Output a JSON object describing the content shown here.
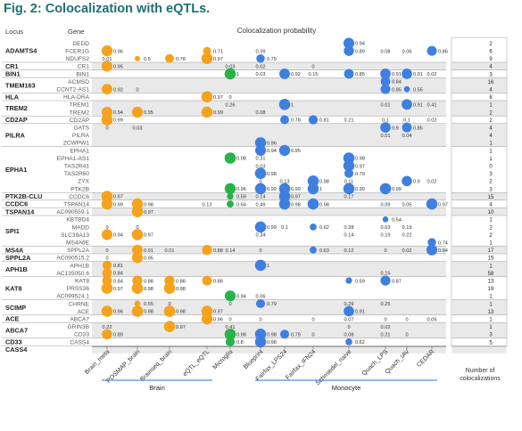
{
  "title": "Fig. 2: Colocalization with eQTLs.",
  "chart_data": {
    "type": "scatter",
    "title": "Colocalization probability",
    "header_locus": "Locus",
    "header_gene": "Gene",
    "columns": [
      "Brain_meta",
      "ROSMAP_brain",
      "Brainseq_brain",
      "eQTL_eQTL",
      "Microglia",
      "Blueprint",
      "Fairfax_LPS24",
      "Fairfax_IFN24",
      "Schmiedel_naive",
      "Quach_LPS",
      "Quach_IAV",
      "CEDAR"
    ],
    "count_label": "Number of colocalizations",
    "groups": [
      {
        "label": "Brain",
        "from": 0,
        "to": 3
      },
      {
        "label": "Monocyte",
        "from": 5,
        "to": 11
      }
    ],
    "colors": {
      "Brain": "#f5a21d",
      "Microglia": "#27b24a",
      "Monocyte": "#3f7fe0"
    },
    "loci": [
      {
        "name": "ADAMTS4",
        "from": 0,
        "to": 2
      },
      {
        "name": "CR1",
        "from": 3,
        "to": 3
      },
      {
        "name": "BIN1",
        "from": 4,
        "to": 4
      },
      {
        "name": "TMEM163",
        "from": 5,
        "to": 6
      },
      {
        "name": "HLA",
        "from": 7,
        "to": 7
      },
      {
        "name": "TREM2",
        "from": 8,
        "to": 9
      },
      {
        "name": "CD2AP",
        "from": 10,
        "to": 10
      },
      {
        "name": "PILRA",
        "from": 11,
        "to": 13
      },
      {
        "name": "EPHA1",
        "from": 14,
        "to": 19
      },
      {
        "name": "PTK2B-CLU",
        "from": 20,
        "to": 20
      },
      {
        "name": "CCDC6",
        "from": 21,
        "to": 21
      },
      {
        "name": "TSPAN14",
        "from": 22,
        "to": 22
      },
      {
        "name": "SPI1",
        "from": 23,
        "to": 26
      },
      {
        "name": "MS4A",
        "from": 27,
        "to": 27
      },
      {
        "name": "SPPL2A",
        "from": 28,
        "to": 28
      },
      {
        "name": "APH1B",
        "from": 29,
        "to": 30
      },
      {
        "name": "KAT8",
        "from": 31,
        "to": 33
      },
      {
        "name": "SCIMP",
        "from": 34,
        "to": 35
      },
      {
        "name": "ACE",
        "from": 36,
        "to": 36
      },
      {
        "name": "ABCA7",
        "from": 37,
        "to": 38
      },
      {
        "name": "CD33",
        "from": 39,
        "to": 39
      },
      {
        "name": "CASS4",
        "from": 40,
        "to": 40
      }
    ],
    "rows": [
      {
        "gene": "DEDD",
        "count": "2",
        "v": [
          null,
          null,
          null,
          null,
          null,
          null,
          null,
          null,
          0.94,
          null,
          null,
          null
        ]
      },
      {
        "gene": "FCER1G",
        "count": "6",
        "v": [
          0.96,
          null,
          null,
          0.71,
          null,
          0.39,
          null,
          null,
          0.89,
          0.08,
          0.06,
          0.86
        ]
      },
      {
        "gene": "NDUFS2",
        "count": "9",
        "v": [
          0.01,
          0.5,
          0.78,
          0.97,
          null,
          0.75,
          null,
          null,
          null,
          null,
          null,
          null
        ]
      },
      {
        "gene": "CR1",
        "count": "4",
        "v": [
          0.95,
          null,
          null,
          null,
          0.03,
          0.02,
          null,
          0,
          null,
          null,
          null,
          null
        ]
      },
      {
        "gene": "BIN1",
        "count": "3",
        "v": [
          null,
          null,
          null,
          null,
          1,
          0.03,
          0.92,
          0.15,
          0.85,
          0.91,
          0.91,
          0.02
        ]
      },
      {
        "gene": "ACMSD",
        "count": "16",
        "v": [
          null,
          null,
          null,
          null,
          null,
          null,
          null,
          null,
          null,
          0.84,
          null,
          null
        ]
      },
      {
        "gene": "CCNT2-AS1",
        "count": "4",
        "v": [
          0.92,
          0,
          null,
          null,
          null,
          null,
          null,
          null,
          null,
          0.85,
          0.55,
          null
        ]
      },
      {
        "gene": "HLA-DRA",
        "count": "8",
        "v": [
          null,
          null,
          null,
          0.97,
          0,
          null,
          null,
          null,
          null,
          null,
          null,
          null
        ]
      },
      {
        "gene": "TREM1",
        "count": "1",
        "v": [
          null,
          null,
          null,
          null,
          0.26,
          null,
          1,
          null,
          null,
          0.01,
          0.91,
          0.41
        ]
      },
      {
        "gene": "TREM2",
        "count": "2",
        "v": [
          0.94,
          0.95,
          null,
          0.99,
          null,
          0.08,
          null,
          null,
          null,
          null,
          null,
          null
        ]
      },
      {
        "gene": "CD2AP",
        "count": "2",
        "v": [
          0.99,
          null,
          null,
          null,
          null,
          null,
          0.78,
          0.81,
          0.21,
          0.1,
          0.1,
          0.02
        ]
      },
      {
        "gene": "GATS",
        "count": "4",
        "v": [
          0,
          0.03,
          null,
          null,
          null,
          null,
          null,
          null,
          null,
          0.9,
          0.85,
          null
        ]
      },
      {
        "gene": "PILRA",
        "count": "4",
        "v": [
          null,
          null,
          null,
          null,
          null,
          null,
          null,
          null,
          null,
          0.01,
          0.04,
          null
        ]
      },
      {
        "gene": "ZCWPW1",
        "count": "1",
        "v": [
          null,
          null,
          null,
          null,
          null,
          0.96,
          null,
          null,
          null,
          null,
          null,
          null
        ]
      },
      {
        "gene": "EPHA1",
        "count": "1",
        "v": [
          null,
          null,
          null,
          null,
          null,
          0.94,
          0.95,
          null,
          null,
          null,
          null,
          null
        ]
      },
      {
        "gene": "EPHA1-AS1",
        "count": "1",
        "v": [
          null,
          null,
          null,
          null,
          0.98,
          0.31,
          null,
          null,
          0.98,
          null,
          null,
          null
        ]
      },
      {
        "gene": "TAS2R41",
        "count": "0",
        "v": [
          null,
          null,
          null,
          null,
          null,
          0.03,
          null,
          null,
          0.97,
          null,
          null,
          null
        ]
      },
      {
        "gene": "TAS2R60",
        "count": "3",
        "v": [
          null,
          null,
          null,
          null,
          null,
          0.98,
          null,
          null,
          0.79,
          null,
          null,
          null
        ]
      },
      {
        "gene": "ZYX",
        "count": "2",
        "v": [
          null,
          null,
          null,
          null,
          null,
          0,
          0.13,
          0.98,
          0.11,
          null,
          0.9,
          0.02
        ]
      },
      {
        "gene": "PTK2B",
        "count": "3",
        "v": [
          null,
          null,
          null,
          null,
          0.96,
          0.99,
          0.99,
          1,
          0.99,
          0.99,
          null,
          null
        ]
      },
      {
        "gene": "CCDC6",
        "count": "15",
        "v": [
          0.97,
          null,
          null,
          null,
          0.59,
          0.14,
          0.97,
          null,
          0.17,
          null,
          null,
          null
        ]
      },
      {
        "gene": "TSPAN14",
        "count": "4",
        "v": [
          0.99,
          0.98,
          null,
          0.12,
          0.64,
          0.49,
          0.98,
          0.98,
          null,
          0.09,
          0.05,
          0.97
        ]
      },
      {
        "gene": "AC090559.1",
        "count": "10",
        "v": [
          null,
          0.97,
          null,
          null,
          null,
          null,
          null,
          null,
          null,
          null,
          null,
          null
        ]
      },
      {
        "gene": "KBTBD4",
        "count": "1",
        "v": [
          null,
          null,
          null,
          null,
          null,
          null,
          null,
          null,
          null,
          0.54,
          null,
          null
        ]
      },
      {
        "gene": "MADD",
        "count": "2",
        "v": [
          0,
          0,
          null,
          null,
          null,
          0.99,
          0.1,
          0.62,
          0.28,
          0.03,
          0.19,
          null
        ]
      },
      {
        "gene": "SLC39A13",
        "count": "2",
        "v": [
          0.94,
          0.97,
          null,
          null,
          null,
          0.34,
          null,
          null,
          0.14,
          0.19,
          0.22,
          null
        ]
      },
      {
        "gene": "MS4A6E",
        "count": "1",
        "v": [
          null,
          null,
          null,
          null,
          null,
          null,
          null,
          null,
          null,
          null,
          null,
          0.74
        ]
      },
      {
        "gene": "SPPL2A",
        "count": "17",
        "v": [
          0,
          0.91,
          0.01,
          0.88,
          0.14,
          0,
          null,
          0.63,
          0.12,
          0,
          0.02,
          0.94
        ]
      },
      {
        "gene": "AC090515.2",
        "count": "15",
        "v": [
          0,
          0.95,
          null,
          null,
          null,
          null,
          null,
          null,
          null,
          null,
          null,
          null
        ]
      },
      {
        "gene": "APH1B",
        "count": "1",
        "v": [
          0.81,
          null,
          null,
          null,
          null,
          1,
          null,
          null,
          null,
          null,
          null,
          null
        ]
      },
      {
        "gene": "AC135050.6",
        "count": "58",
        "v": [
          0.84,
          null,
          null,
          null,
          null,
          null,
          null,
          null,
          null,
          0.15,
          null,
          null
        ]
      },
      {
        "gene": "KAT8",
        "count": "13",
        "v": [
          0.84,
          0.88,
          0.88,
          0.86,
          null,
          null,
          null,
          null,
          0.59,
          0.87,
          null,
          null
        ]
      },
      {
        "gene": "PRSS36",
        "count": "19",
        "v": [
          0.97,
          0.98,
          0.98,
          null,
          null,
          null,
          null,
          null,
          null,
          null,
          null,
          null
        ]
      },
      {
        "gene": "AC099524.1",
        "count": "1",
        "v": [
          null,
          null,
          null,
          null,
          0.94,
          0.06,
          null,
          null,
          null,
          null,
          null,
          null
        ]
      },
      {
        "gene": "CHRNE",
        "count": "1",
        "v": [
          null,
          0.55,
          0,
          null,
          0,
          0.79,
          null,
          null,
          0.29,
          0.25,
          null,
          null
        ]
      },
      {
        "gene": "ACE",
        "count": "13",
        "v": [
          0.96,
          0.98,
          0.98,
          0.97,
          null,
          null,
          null,
          null,
          0.91,
          null,
          null,
          null
        ]
      },
      {
        "gene": "ABCA7",
        "count": "1",
        "v": [
          null,
          null,
          null,
          0.96,
          0,
          0,
          null,
          0,
          0.07,
          0,
          0,
          0.05
        ]
      },
      {
        "gene": "GRIN3B",
        "count": "1",
        "v": [
          0.22,
          null,
          0.97,
          null,
          0.41,
          null,
          null,
          null,
          0,
          0.02,
          null,
          null
        ]
      },
      {
        "gene": "CD33",
        "count": "3",
        "v": [
          0.89,
          null,
          null,
          null,
          0.98,
          0.98,
          0.79,
          0,
          0.08,
          0.21,
          0,
          null
        ]
      },
      {
        "gene": "CASS4",
        "count": "5",
        "v": [
          null,
          null,
          null,
          null,
          0.8,
          0.98,
          null,
          null,
          0.62,
          null,
          null,
          null
        ]
      }
    ]
  }
}
